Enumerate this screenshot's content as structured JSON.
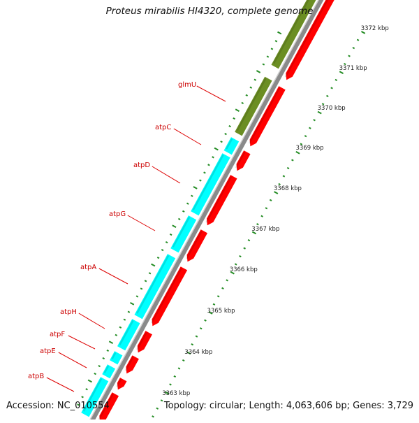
{
  "title": "Proteus mirabilis HI4320, complete genome",
  "footer": {
    "accession": "Accession: NC_010554",
    "summary": "Topology: circular; Length: 4,063,606 bp; Genes: 3,729"
  },
  "colors": {
    "plus_strand_gene": "#00ffff",
    "plus_strand_olive": "#6b8e23",
    "minus_strand_cds": "#ff0000",
    "backbone": "#8a8a8a",
    "label": "#cc0000",
    "tick": "#228b22"
  },
  "scale_labels": [
    "3363 kbp",
    "3364 kbp",
    "3365 kbp",
    "3366 kbp",
    "3367 kbp",
    "3368 kbp",
    "3369 kbp",
    "3370 kbp",
    "3371 kbp",
    "3372 kbp"
  ],
  "gene_labels": [
    "glmU",
    "atpC",
    "atpD",
    "atpG",
    "atpA",
    "atpH",
    "atpF",
    "atpE",
    "atpB"
  ]
}
